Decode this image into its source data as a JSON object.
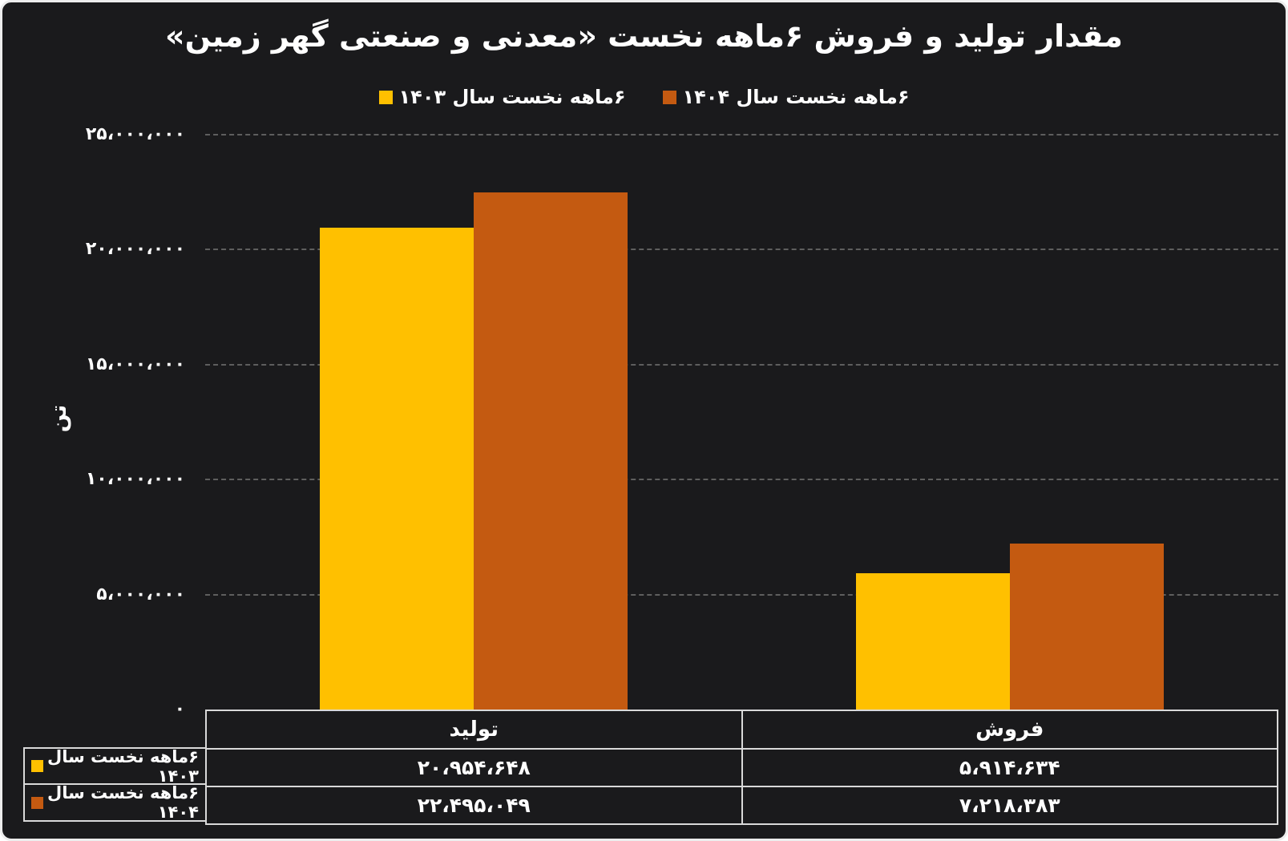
{
  "title": "مقدار تولید و فروش ۶ماهه نخست «معدنی و صنعتی گهر زمین»",
  "y_axis_title": "تن",
  "legend": [
    {
      "label": "۶ماهه نخست سال ۱۴۰۳",
      "color": "#FFC000"
    },
    {
      "label": "۶ماهه نخست سال ۱۴۰۴",
      "color": "#C45A11"
    }
  ],
  "chart_data": {
    "type": "bar",
    "title": "مقدار تولید و فروش ۶ماهه نخست «معدنی و صنعتی گهر زمین»",
    "ylabel": "تن",
    "xlabel": "",
    "categories": [
      "تولید",
      "فروش"
    ],
    "series": [
      {
        "name": "۶ماهه نخست سال ۱۴۰۳",
        "color": "#FFC000",
        "values": [
          20954648,
          5914634
        ],
        "value_labels": [
          "۲۰،۹۵۴،۶۴۸",
          "۵،۹۱۴،۶۳۴"
        ]
      },
      {
        "name": "۶ماهه نخست سال ۱۴۰۴",
        "color": "#C45A11",
        "values": [
          22495049,
          7218383
        ],
        "value_labels": [
          "۲۲،۴۹۵،۰۴۹",
          "۷،۲۱۸،۳۸۳"
        ]
      }
    ],
    "ylim": [
      0,
      25000000
    ],
    "yticks": [
      {
        "value": 25000000,
        "label": "۲۵،۰۰۰،۰۰۰"
      },
      {
        "value": 20000000,
        "label": "۲۰،۰۰۰،۰۰۰"
      },
      {
        "value": 15000000,
        "label": "۱۵،۰۰۰،۰۰۰"
      },
      {
        "value": 10000000,
        "label": "۱۰،۰۰۰،۰۰۰"
      },
      {
        "value": 5000000,
        "label": "۵،۰۰۰،۰۰۰"
      },
      {
        "value": 0,
        "label": "۰"
      }
    ],
    "grid": "horizontal-dashed",
    "legend_position": "top"
  },
  "table": {
    "column_headers": [
      "تولید",
      "فروش"
    ],
    "rows": [
      {
        "label": "۶ماهه نخست سال ۱۴۰۳",
        "swatch_color": "#FFC000",
        "values": [
          "۲۰،۹۵۴،۶۴۸",
          "۵،۹۱۴،۶۳۴"
        ]
      },
      {
        "label": "۶ماهه نخست سال ۱۴۰۴",
        "swatch_color": "#C45A11",
        "values": [
          "۲۲،۴۹۵،۰۴۹",
          "۷،۲۱۸،۳۸۳"
        ]
      }
    ]
  },
  "colors": {
    "background": "#1a1a1c",
    "series_1403": "#FFC000",
    "series_1404": "#C45A11",
    "gridline": "#5e5e5e",
    "table_border": "#d9d9d9",
    "text": "#ffffff",
    "page_border": "#ededed"
  }
}
